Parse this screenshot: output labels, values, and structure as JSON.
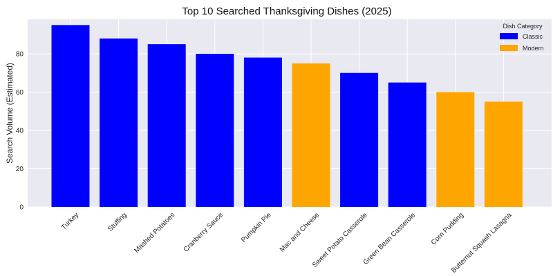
{
  "chart_data": {
    "type": "bar",
    "title": "Top 10 Searched Thanksgiving Dishes (2025)",
    "xlabel": "",
    "ylabel": "Search Volume (Estimated)",
    "ylim": [
      0,
      98
    ],
    "yticks": [
      0,
      20,
      40,
      60,
      80
    ],
    "grid": true,
    "categories": [
      "Turkey",
      "Stuffing",
      "Mashed Potatoes",
      "Cranberry Sauce",
      "Pumpkin Pie",
      "Mac and Cheese",
      "Sweet Potato Casserole",
      "Green Bean Casserole",
      "Corn Pudding",
      "Butternut Squash Lasagna"
    ],
    "values": [
      95,
      88,
      85,
      80,
      78,
      75,
      70,
      65,
      60,
      55
    ],
    "groups": [
      "Classic",
      "Classic",
      "Classic",
      "Classic",
      "Classic",
      "Modern",
      "Classic",
      "Classic",
      "Modern",
      "Modern"
    ],
    "legend": {
      "title": "Dish Category",
      "placement": "top-right",
      "entries": [
        {
          "label": "Classic",
          "color": "#0000ff"
        },
        {
          "label": "Modern",
          "color": "#ffa500"
        }
      ]
    }
  }
}
